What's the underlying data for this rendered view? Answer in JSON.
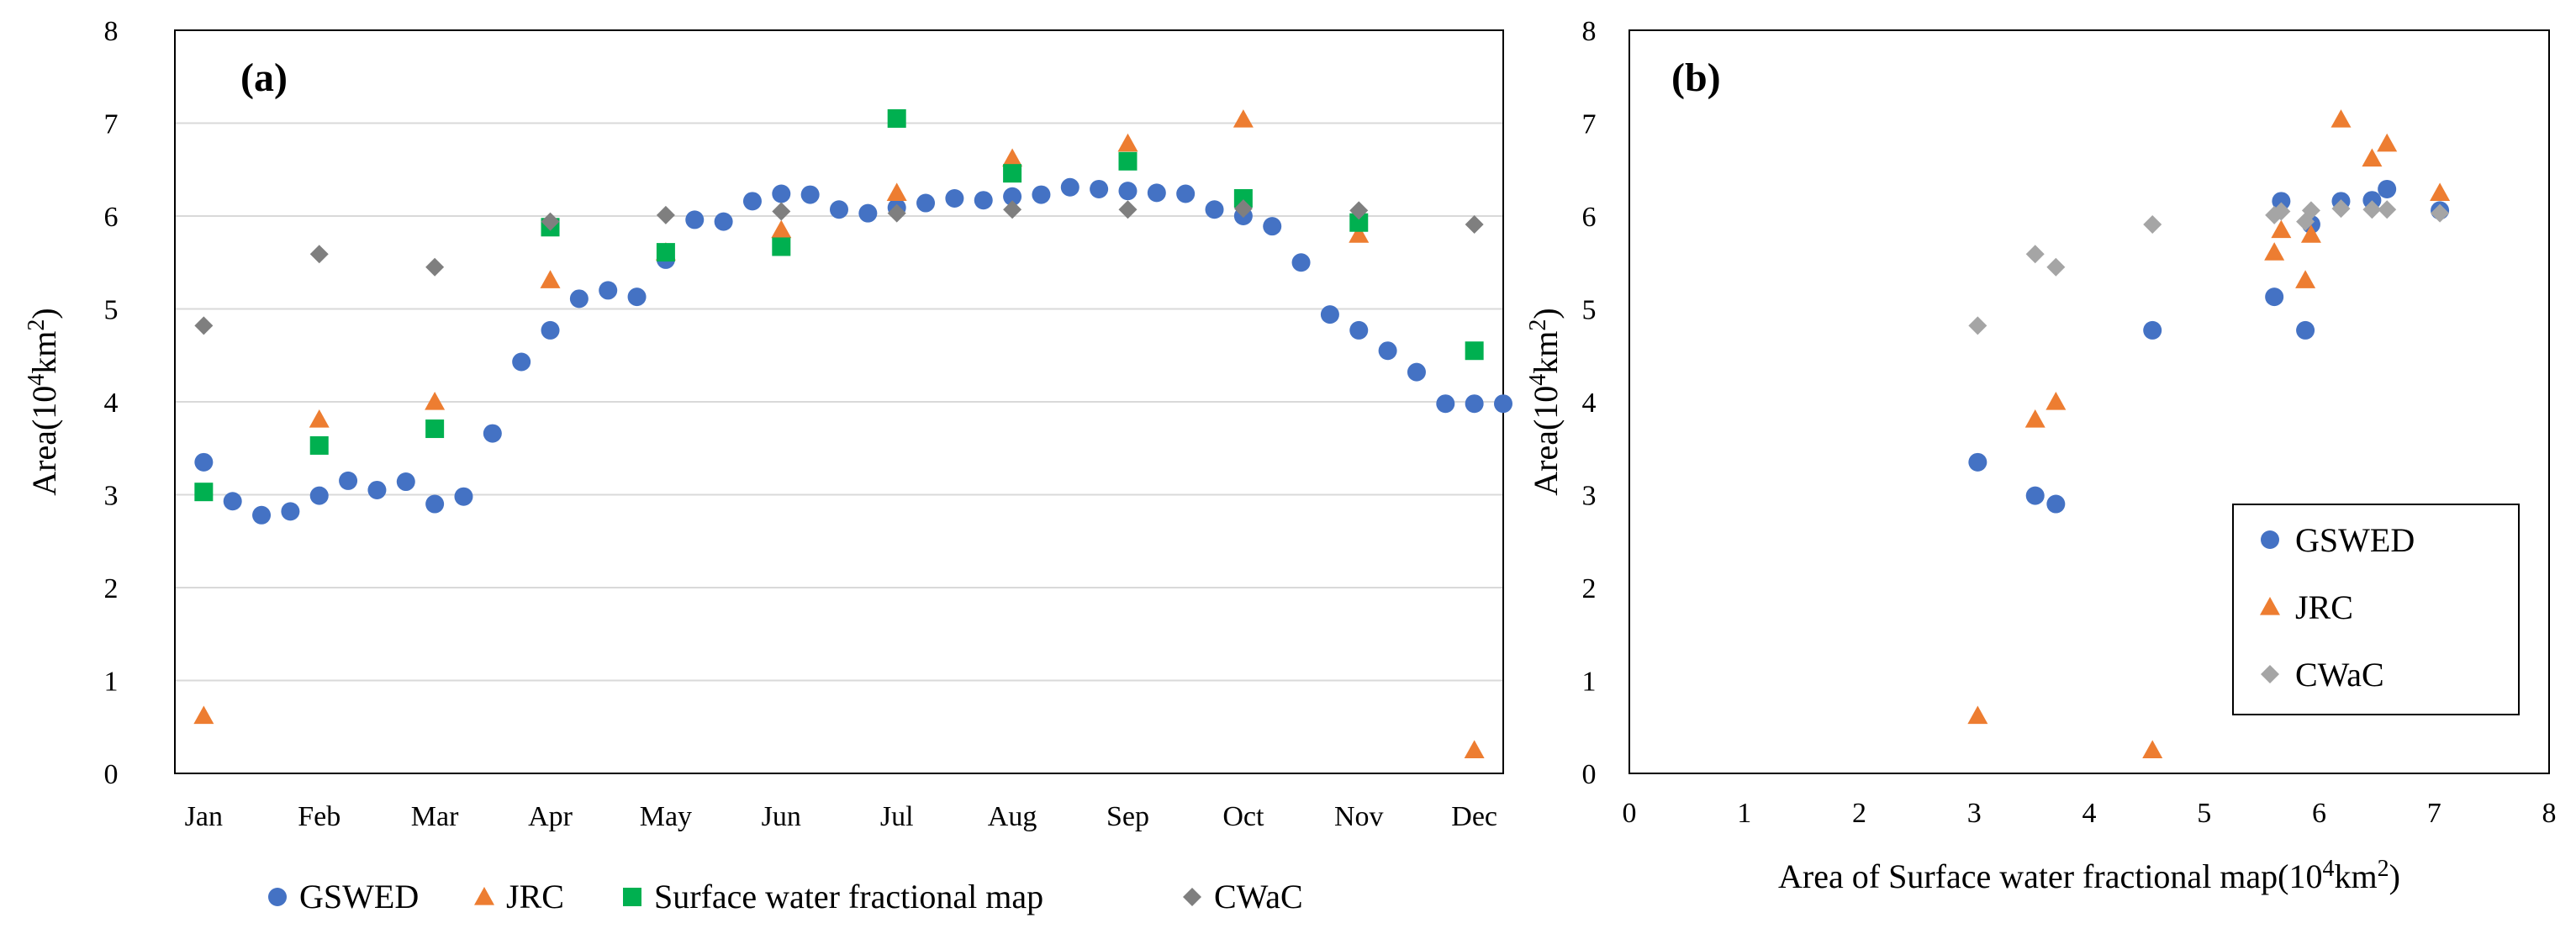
{
  "colors": {
    "gswed": "#4472C4",
    "jrc": "#ED7D31",
    "fractional": "#00B050",
    "cwac_a": "#7F7F7F",
    "cwac_b": "#A5A5A5",
    "grid": "#D9D9D9",
    "axis": "#000000"
  },
  "chart_data": [
    {
      "type": "scatter",
      "panel_label": "(a)",
      "title": "",
      "xlabel": "",
      "ylabel_main": "Area(10",
      "ylabel_sup": "4",
      "ylabel_end": "km",
      "ylabel_sup2": "2",
      "ylabel_close": ")",
      "ylim": [
        0,
        8
      ],
      "yticks": [
        "0",
        "1",
        "2",
        "3",
        "4",
        "5",
        "6",
        "7",
        "8"
      ],
      "xlim": [
        0,
        46
      ],
      "xtick_labels": [
        "Jan",
        "Feb",
        "Mar",
        "Apr",
        "May",
        "Jun",
        "Jul",
        "Aug",
        "Sep",
        "Oct",
        "Nov",
        "Dec"
      ],
      "xtick_positions": [
        1,
        5,
        9,
        13,
        17,
        21,
        25,
        29,
        33,
        37,
        41,
        45
      ],
      "grid": true,
      "legend_position": "bottom",
      "series": [
        {
          "name": "GSWED",
          "marker": "circle",
          "color_key": "gswed",
          "x": [
            1,
            2,
            3,
            4,
            5,
            6,
            7,
            8,
            9,
            10,
            11,
            12,
            13,
            14,
            15,
            16,
            17,
            18,
            19,
            20,
            21,
            22,
            23,
            24,
            25,
            26,
            27,
            28,
            29,
            30,
            31,
            32,
            33,
            34,
            35,
            36,
            37,
            38,
            39,
            40,
            41,
            42,
            43,
            44,
            45,
            46
          ],
          "y": [
            3.35,
            2.93,
            2.78,
            2.82,
            2.99,
            3.15,
            3.05,
            3.14,
            2.9,
            2.98,
            3.66,
            4.43,
            4.77,
            5.11,
            5.2,
            5.13,
            5.53,
            5.96,
            5.94,
            6.16,
            6.24,
            6.23,
            6.07,
            6.03,
            6.09,
            6.14,
            6.19,
            6.17,
            6.21,
            6.23,
            6.31,
            6.29,
            6.27,
            6.25,
            6.24,
            6.07,
            6.0,
            5.89,
            5.5,
            4.94,
            4.77,
            4.55,
            4.32,
            3.98,
            3.98,
            3.98
          ]
        },
        {
          "name": "JRC",
          "marker": "triangle",
          "color_key": "jrc",
          "x": [
            1,
            5,
            9,
            13,
            17,
            21,
            25,
            29,
            33,
            37,
            41,
            45
          ],
          "y": [
            0.62,
            3.81,
            4.0,
            5.31,
            5.61,
            5.85,
            6.25,
            6.62,
            6.78,
            7.04,
            5.8,
            0.25
          ]
        },
        {
          "name": "Surface water fractional map",
          "marker": "square",
          "color_key": "fractional",
          "x": [
            1,
            5,
            9,
            13,
            17,
            21,
            25,
            29,
            33,
            37,
            41,
            45
          ],
          "y": [
            3.03,
            3.53,
            3.71,
            5.88,
            5.61,
            5.67,
            7.05,
            6.46,
            6.59,
            6.19,
            5.93,
            4.55
          ]
        },
        {
          "name": "CWaC",
          "marker": "diamond",
          "color_key": "cwac_a",
          "x": [
            1,
            5,
            9,
            13,
            17,
            21,
            25,
            29,
            33,
            37,
            41,
            45
          ],
          "y": [
            4.82,
            5.59,
            5.45,
            5.94,
            6.01,
            6.05,
            6.03,
            6.07,
            6.07,
            6.08,
            6.06,
            5.91
          ]
        }
      ]
    },
    {
      "type": "scatter",
      "panel_label": "(b)",
      "title": "",
      "xlabel_main": "Area of Surface water fractional map(10",
      "xlabel_sup": "4",
      "xlabel_end": "km",
      "xlabel_sup2": "2",
      "xlabel_close": ")",
      "ylabel_main": "Area(10",
      "ylabel_sup": "4",
      "ylabel_end": "km",
      "ylabel_sup2": "2",
      "ylabel_close": ")",
      "xlim": [
        0,
        8
      ],
      "ylim": [
        0,
        8
      ],
      "xticks": [
        "0",
        "1",
        "2",
        "3",
        "4",
        "5",
        "6",
        "7",
        "8"
      ],
      "yticks": [
        "0",
        "1",
        "2",
        "3",
        "4",
        "5",
        "6",
        "7",
        "8"
      ],
      "grid": false,
      "legend_position": "bottom-right",
      "series": [
        {
          "name": "GSWED",
          "marker": "circle",
          "color_key": "gswed",
          "x": [
            3.03,
            3.53,
            3.71,
            4.55,
            5.61,
            5.67,
            5.88,
            5.93,
            6.19,
            6.46,
            6.59,
            7.05
          ],
          "y": [
            3.35,
            2.99,
            2.9,
            4.77,
            5.13,
            6.16,
            4.77,
            5.91,
            6.16,
            6.17,
            6.29,
            6.06
          ]
        },
        {
          "name": "JRC",
          "marker": "triangle",
          "color_key": "jrc",
          "x": [
            3.03,
            3.53,
            3.71,
            4.55,
            5.61,
            5.67,
            5.88,
            5.93,
            6.19,
            6.46,
            6.59,
            7.05
          ],
          "y": [
            0.62,
            3.81,
            4.0,
            0.25,
            5.61,
            5.85,
            5.31,
            5.8,
            7.04,
            6.62,
            6.78,
            6.25
          ]
        },
        {
          "name": "CWaC",
          "marker": "diamond",
          "color_key": "cwac_b",
          "x": [
            3.03,
            3.53,
            3.71,
            4.55,
            5.61,
            5.67,
            5.88,
            5.93,
            6.19,
            6.46,
            6.59,
            7.05
          ],
          "y": [
            4.82,
            5.59,
            5.45,
            5.91,
            6.01,
            6.05,
            5.94,
            6.06,
            6.08,
            6.07,
            6.07,
            6.03
          ]
        }
      ]
    }
  ]
}
